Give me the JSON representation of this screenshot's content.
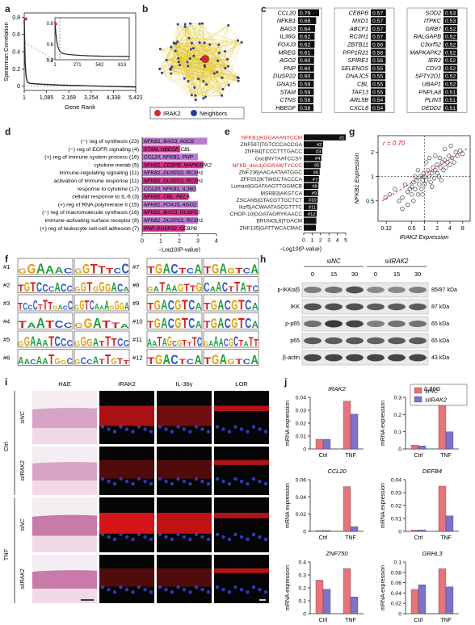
{
  "panel_labels": {
    "a": "a",
    "b": "b",
    "c": "c",
    "d": "d",
    "e": "e",
    "f": "f",
    "g": "g",
    "h": "h",
    "i": "i",
    "j": "j"
  },
  "colors": {
    "siNC": "#e8737a",
    "siIRAK2": "#7b74c9",
    "black": "#1a1a1a",
    "network_edge": "#e3c62b",
    "irak2_node": "#d72a2a",
    "neighbor_node": "#2f3aa0",
    "magenta": "#d0338a",
    "violet": "#b87ccf"
  },
  "panel_a": {
    "ylabel": "Spearman Correlation",
    "xlabel": "Gene Rank",
    "y_ticks": [
      "0.8",
      "0.6",
      "0.4",
      "0.2",
      "0"
    ],
    "x_ticks": [
      "1",
      "1,085",
      "2,169",
      "3,254",
      "4,338",
      "5,423"
    ],
    "inset_y_ticks": [
      "0.8",
      "0.6",
      "0.4",
      "0.2"
    ],
    "inset_x_ticks": [
      "1",
      "271",
      "542",
      "813"
    ],
    "inset_y_ticks_render": [
      0.8,
      0.6,
      0.4,
      0.2
    ],
    "inset_x_render": [
      1,
      271,
      542,
      813
    ],
    "main_x": [
      1,
      1085,
      2169,
      3254,
      4338,
      5423
    ],
    "main_y_ticks_render": [
      0.8,
      0.6,
      0.4,
      0.2,
      0
    ]
  },
  "panel_b": {
    "legend": [
      {
        "label": "IRAK2"
      },
      {
        "label": "Neighbors"
      }
    ]
  },
  "panel_c": {
    "columns": [
      [
        {
          "gene": "CCL20",
          "v": "0.79"
        },
        {
          "gene": "NFKB1",
          "v": "0.68"
        },
        {
          "gene": "BAG3",
          "v": "0.64"
        },
        {
          "gene": "IL36G",
          "v": "0.62"
        },
        {
          "gene": "FOXJ3",
          "v": "0.62"
        },
        {
          "gene": "MREG",
          "v": "0.61"
        },
        {
          "gene": "AGO2",
          "v": "0.60"
        },
        {
          "gene": "PNP",
          "v": "0.60"
        },
        {
          "gene": "DUSP22",
          "v": "0.60"
        },
        {
          "gene": "GNA15",
          "v": "0.59"
        },
        {
          "gene": "STAM",
          "v": "0.59"
        },
        {
          "gene": "CTNS",
          "v": "0.58"
        },
        {
          "gene": "HBEGF",
          "v": "0.58"
        }
      ],
      [
        {
          "gene": "CEBPB",
          "v": "0.57"
        },
        {
          "gene": "MXD1",
          "v": "0.57"
        },
        {
          "gene": "ABCF1",
          "v": "0.57"
        },
        {
          "gene": "RC3H1",
          "v": "0.57"
        },
        {
          "gene": "ZBTB11",
          "v": "0.56"
        },
        {
          "gene": "PPP1R21",
          "v": "0.56"
        },
        {
          "gene": "SPIRE1",
          "v": "0.56"
        },
        {
          "gene": "SELENOS",
          "v": "0.55"
        },
        {
          "gene": "DNAJC5",
          "v": "0.55"
        },
        {
          "gene": "CBL",
          "v": "0.55"
        },
        {
          "gene": "TAF13",
          "v": "0.55"
        },
        {
          "gene": "ARL5B",
          "v": "0.54"
        },
        {
          "gene": "CXCL8",
          "v": "0.54"
        }
      ],
      [
        {
          "gene": "SOD2",
          "v": "0.53"
        },
        {
          "gene": "ITPKC",
          "v": "0.53"
        },
        {
          "gene": "GRB7",
          "v": "0.52"
        },
        {
          "gene": "RALGAPB",
          "v": "0.52"
        },
        {
          "gene": "C3orf52",
          "v": "0.52"
        },
        {
          "gene": "MAPKAPK2",
          "v": "0.52"
        },
        {
          "gene": "IER2",
          "v": "0.52"
        },
        {
          "gene": "CDV3",
          "v": "0.52"
        },
        {
          "gene": "SPTY2D1",
          "v": "0.52"
        },
        {
          "gene": "UBAP1",
          "v": "0.52"
        },
        {
          "gene": "PNPLA8",
          "v": "0.51"
        },
        {
          "gene": "PLIN3",
          "v": "0.51"
        },
        {
          "gene": "DEDD2",
          "v": "0.51"
        }
      ]
    ]
  },
  "panel_d": {
    "rows": [
      {
        "term": "(−) reg of synthesis (23)",
        "genes": "NFKB1, BAG3, AGO2",
        "v": 3.5,
        "color": "violet"
      },
      {
        "term": "(−) reg of EGFR signaling (4)",
        "genes": "STAM, HBEGF, CBL",
        "v": 2.05,
        "color": "magenta"
      },
      {
        "term": "(+) reg of immune system process (16)",
        "genes": "CCL20, NFKB1, PNP",
        "v": 3.0,
        "color": "violet"
      },
      {
        "term": "cytokine metab (5)",
        "genes": "NFKB1, CEBPB, MAPKAPK2",
        "v": 3.3,
        "color": "magenta"
      },
      {
        "term": "immune-regulating signaling (11)",
        "genes": "NFKB1, DUSP22, RC3H1",
        "v": 3.0,
        "color": "violet"
      },
      {
        "term": "activation of immune response (11)",
        "genes": "NFKB1, DUSP22, RC3H1",
        "v": 3.0,
        "color": "magenta"
      },
      {
        "term": "response to cytokine (17)",
        "genes": "CCL20, NFKB1, IL36G",
        "v": 2.9,
        "color": "violet"
      },
      {
        "term": "cellular response to IL-6 (3)",
        "genes": "NFKB1, CBL, RELA",
        "v": 2.5,
        "color": "magenta"
      },
      {
        "term": "(+) reg of RNA polymerase II (15)",
        "genes": "NFKB1, FOXJ3, AGO2",
        "v": 3.0,
        "color": "violet"
      },
      {
        "term": "(−) reg of macromolecule synthesis (16)",
        "genes": "NFKB1, BAG3, DUSP22",
        "v": 3.0,
        "color": "magenta"
      },
      {
        "term": "immune-activating surface receptor (8)",
        "genes": "NFKB1, DUSP22, RC3H1",
        "v": 3.0,
        "color": "violet"
      },
      {
        "term": "(+) reg of leukocyte cell-cell adhesion (7)",
        "genes": "PNP, DUSP22, CEBPB",
        "v": 2.3,
        "color": "magenta"
      }
    ],
    "x_ticks": [
      "0",
      "1",
      "2",
      "3",
      "4"
    ],
    "x_max": 4,
    "xlabel": "−Log10(P-value)"
  },
  "panel_e": {
    "rows": [
      {
        "label": "NFKB1|KGGAAANYCCM",
        "rank": "#1",
        "v": 1.0,
        "highlight": true
      },
      {
        "label": "ZNF597|TGTCCCACCGA",
        "rank": "#2",
        "v": 0.46,
        "highlight": false
      },
      {
        "label": "ZNF84|TCCCTTTGACC",
        "rank": "#3",
        "v": 0.44,
        "highlight": false
      },
      {
        "label": "Gscl|NYTAATCCSY",
        "rank": "#4",
        "v": 0.42,
        "highlight": false
      },
      {
        "label": "NFKB_disc1|GGRAWTYCCC",
        "rank": "#5",
        "v": 0.4,
        "highlight": true
      },
      {
        "label": "ZNF236|AACAATAATGGC",
        "rank": "#6",
        "v": 0.38,
        "highlight": false
      },
      {
        "label": "ZFP202|KTWGCTACCCA",
        "rank": "#7",
        "v": 0.36,
        "highlight": false
      },
      {
        "label": "Lumanl|GGATAAGTTGGMCB",
        "rank": "#8",
        "v": 0.35,
        "highlight": false
      },
      {
        "label": "MSRB3|AKGTCA",
        "rank": "#9",
        "v": 0.34,
        "highlight": false
      },
      {
        "label": "ZSCAN5|GTACGTTGCTCT",
        "rank": "#10",
        "v": 0.33,
        "highlight": false
      },
      {
        "label": "Ikzf5|ACWAATASCGTTTC",
        "rank": "#11",
        "v": 0.32,
        "highlight": false
      },
      {
        "label": "CHOP-10|GGATAGRYKAACC",
        "rank": "#12",
        "v": 0.31,
        "highlight": false
      },
      {
        "label": "BRUNOL6|TGACM",
        "rank": "",
        "v": 0.3,
        "highlight": false
      },
      {
        "label": "ZNF135|GATTWCACMAC",
        "rank": "",
        "v": 0.29,
        "highlight": false
      }
    ],
    "x_ticks": [
      "0",
      "1",
      "2",
      "3",
      "4",
      "5"
    ],
    "xlabel": "−Log10(P-value)"
  },
  "panel_f": {
    "left": [
      {
        "n": "#1",
        "a": "GGAAAC",
        "b": "GGTTTCC"
      },
      {
        "n": "#2",
        "a": "TGTCCCACC",
        "b": "GGTGGGACA"
      },
      {
        "n": "#3",
        "a": "TCCCTTTGACC",
        "b": "GGTCAAAGGGA"
      },
      {
        "n": "#4",
        "a": "TAATCC",
        "b": "GGATTA"
      },
      {
        "n": "#5",
        "a": "GGAAATCCC",
        "b": "GGGATTTCC"
      },
      {
        "n": "#6",
        "a": "AACAATGGC",
        "b": "GCCATTGTT"
      }
    ],
    "right": [
      {
        "n": "#7",
        "a": "TGACTCA",
        "b": "TGAGTCA"
      },
      {
        "n": "#8",
        "a": "GATAAGTTG",
        "b": "CAACTTATC"
      },
      {
        "n": "#9",
        "a": "TGACGTCA",
        "b": "TGACGTCA"
      },
      {
        "n": "#10",
        "a": "TGACGTCA",
        "b": "TGACGTCA"
      },
      {
        "n": "#11",
        "a": "AATAGCGTTTC",
        "b": "GAAACGCTATT"
      },
      {
        "n": "#12",
        "a": "TGACTCA",
        "b": "TGAGTCA"
      }
    ]
  },
  "panel_g": {
    "r_label": "r = 0.70",
    "ylabel": "NFKB1 Expression",
    "xlabel": "IRAK2 Expression",
    "y_ticks": [
      "2",
      "1",
      "0.5"
    ],
    "x_ticks": [
      "0.12",
      "0.5",
      "1",
      "2",
      "4",
      "8"
    ],
    "y_tick_vals": [
      2,
      1,
      0.5
    ],
    "x_tick_vals": [
      0.125,
      0.5,
      1,
      2,
      4,
      8
    ],
    "x_range": [
      0.08,
      12
    ],
    "y_range": [
      0.28,
      3.2
    ],
    "points": [
      [
        0.12,
        0.55
      ],
      [
        0.15,
        0.6
      ],
      [
        0.2,
        0.7
      ],
      [
        0.3,
        0.55
      ],
      [
        0.35,
        0.8
      ],
      [
        0.4,
        0.65
      ],
      [
        0.45,
        0.7
      ],
      [
        0.5,
        0.75
      ],
      [
        0.5,
        0.6
      ],
      [
        0.55,
        0.85
      ],
      [
        0.6,
        0.7
      ],
      [
        0.65,
        0.9
      ],
      [
        0.7,
        0.6
      ],
      [
        0.75,
        0.8
      ],
      [
        0.8,
        1.0
      ],
      [
        0.85,
        0.7
      ],
      [
        0.9,
        0.9
      ],
      [
        0.95,
        1.1
      ],
      [
        1.0,
        0.8
      ],
      [
        1.0,
        1.0
      ],
      [
        1.1,
        0.9
      ],
      [
        1.2,
        1.2
      ],
      [
        1.3,
        1.0
      ],
      [
        1.4,
        0.85
      ],
      [
        1.5,
        1.1
      ],
      [
        1.6,
        1.3
      ],
      [
        1.7,
        0.95
      ],
      [
        1.8,
        1.2
      ],
      [
        2.0,
        1.1
      ],
      [
        2.0,
        1.4
      ],
      [
        2.2,
        1.0
      ],
      [
        2.4,
        1.3
      ],
      [
        2.6,
        1.5
      ],
      [
        2.8,
        1.2
      ],
      [
        3.0,
        1.6
      ],
      [
        3.2,
        1.3
      ],
      [
        3.5,
        1.5
      ],
      [
        3.8,
        1.8
      ],
      [
        4.0,
        1.4
      ],
      [
        4.5,
        1.7
      ],
      [
        5.0,
        1.5
      ],
      [
        5.5,
        2.0
      ],
      [
        6.0,
        1.8
      ],
      [
        7.0,
        2.1
      ],
      [
        8.0,
        1.9
      ],
      [
        1.1,
        1.5
      ],
      [
        0.6,
        1.0
      ],
      [
        2.5,
        0.9
      ],
      [
        1.3,
        1.7
      ],
      [
        0.9,
        0.6
      ],
      [
        0.3,
        0.4
      ],
      [
        0.25,
        0.5
      ],
      [
        0.4,
        0.45
      ],
      [
        3.0,
        2.2
      ],
      [
        4.2,
        2.4
      ],
      [
        1.5,
        0.75
      ],
      [
        2.3,
        1.7
      ],
      [
        0.7,
        1.2
      ],
      [
        0.55,
        0.5
      ],
      [
        1.8,
        1.8
      ]
    ]
  },
  "panel_h": {
    "groups": [
      {
        "label": "siNC"
      },
      {
        "label": "siIRAK2"
      }
    ],
    "times": [
      "0",
      "15",
      "30",
      "0",
      "15",
      "30"
    ],
    "rows": [
      {
        "label": "p-IKKα/β",
        "kda": "85/87 kDa"
      },
      {
        "label": "IKK",
        "kda": "87 kDa"
      },
      {
        "label": "p-p65",
        "kda": "65 kDa"
      },
      {
        "label": "p65",
        "kda": "65 kDa"
      },
      {
        "label": "β-actin",
        "kda": "43 kDa"
      }
    ],
    "intensities": [
      [
        0.55,
        0.6,
        0.75,
        0.5,
        0.5,
        0.55
      ],
      [
        0.75,
        0.75,
        0.75,
        0.7,
        0.7,
        0.7
      ],
      [
        0.6,
        0.85,
        0.8,
        0.55,
        0.6,
        0.6
      ],
      [
        0.7,
        0.7,
        0.72,
        0.68,
        0.7,
        0.7
      ],
      [
        0.8,
        0.8,
        0.8,
        0.8,
        0.8,
        0.8
      ]
    ]
  },
  "panel_i": {
    "cols": [
      "H&E",
      "IRAK2",
      "IL-36γ",
      "LOR"
    ],
    "group_labels": [
      "Ctrl",
      "TNF"
    ],
    "row_labels": [
      "siNC",
      "siIRAK2",
      "siNC",
      "siIRAK2"
    ]
  },
  "panel_j": {
    "legend": [
      {
        "label": "siNC"
      },
      {
        "label": "siIRAK2"
      }
    ],
    "ylabel": "mRNA expression",
    "categories": [
      "Ctrl",
      "TNF"
    ],
    "charts": [
      {
        "title": "IRAK2",
        "ylim": [
          0,
          0.04
        ],
        "ticks": [
          "0",
          "0.01",
          "0.02",
          "0.03",
          "0.04"
        ],
        "siNC": [
          0.0075,
          0.037
        ],
        "siIRAK2": [
          0.0075,
          0.027
        ]
      },
      {
        "title": "IL36G",
        "ylim": [
          0,
          0.3
        ],
        "ticks": [
          "0",
          "0.1",
          "0.2",
          "0.3"
        ],
        "siNC": [
          0.022,
          0.25
        ],
        "siIRAK2": [
          0.018,
          0.1
        ]
      },
      {
        "title": "CCL20",
        "ylim": [
          0,
          0.06
        ],
        "ticks": [
          "0",
          "0.02",
          "0.04",
          "0.06"
        ],
        "siNC": [
          0.001,
          0.052
        ],
        "siIRAK2": [
          0.001,
          0.0055
        ]
      },
      {
        "title": "DEFB4",
        "ylim": [
          0,
          0.04
        ],
        "ticks": [
          "0",
          "0.01",
          "0.02",
          "0.03",
          "0.04"
        ],
        "siNC": [
          0.001,
          0.035
        ],
        "siIRAK2": [
          0.001,
          0.012
        ]
      },
      {
        "title": "ZNF750",
        "ylim": [
          0,
          0.4
        ],
        "ticks": [
          "0",
          "0.1",
          "0.2",
          "0.3",
          "0.4"
        ],
        "siNC": [
          0.26,
          0.35
        ],
        "siIRAK2": [
          0.19,
          0.13
        ]
      },
      {
        "title": "GRHL3",
        "ylim": [
          0,
          0.1
        ],
        "ticks": [
          "0",
          "0.02",
          "0.04",
          "0.06",
          "0.08",
          "0.1"
        ],
        "siNC": [
          0.047,
          0.087
        ],
        "siIRAK2": [
          0.056,
          0.052
        ]
      }
    ]
  }
}
